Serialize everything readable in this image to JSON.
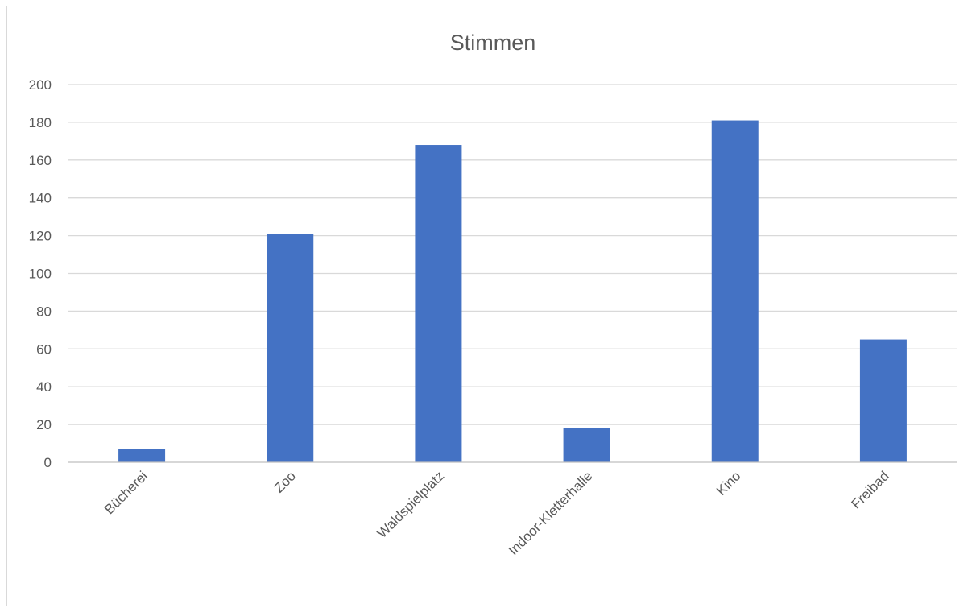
{
  "chart_data": {
    "type": "bar",
    "title": "Stimmen",
    "categories": [
      "Bücherei",
      "Zoo",
      "Waldspielplatz",
      "Indoor-Kletterhalle",
      "Kino",
      "Freibad"
    ],
    "values": [
      7,
      121,
      168,
      18,
      181,
      65
    ],
    "ylim": [
      0,
      200
    ],
    "yticks": [
      0,
      20,
      40,
      60,
      80,
      100,
      120,
      140,
      160,
      180,
      200
    ],
    "xlabel": "",
    "ylabel": "",
    "grid": true,
    "legend": "none",
    "bar_color": "#4472C4"
  }
}
